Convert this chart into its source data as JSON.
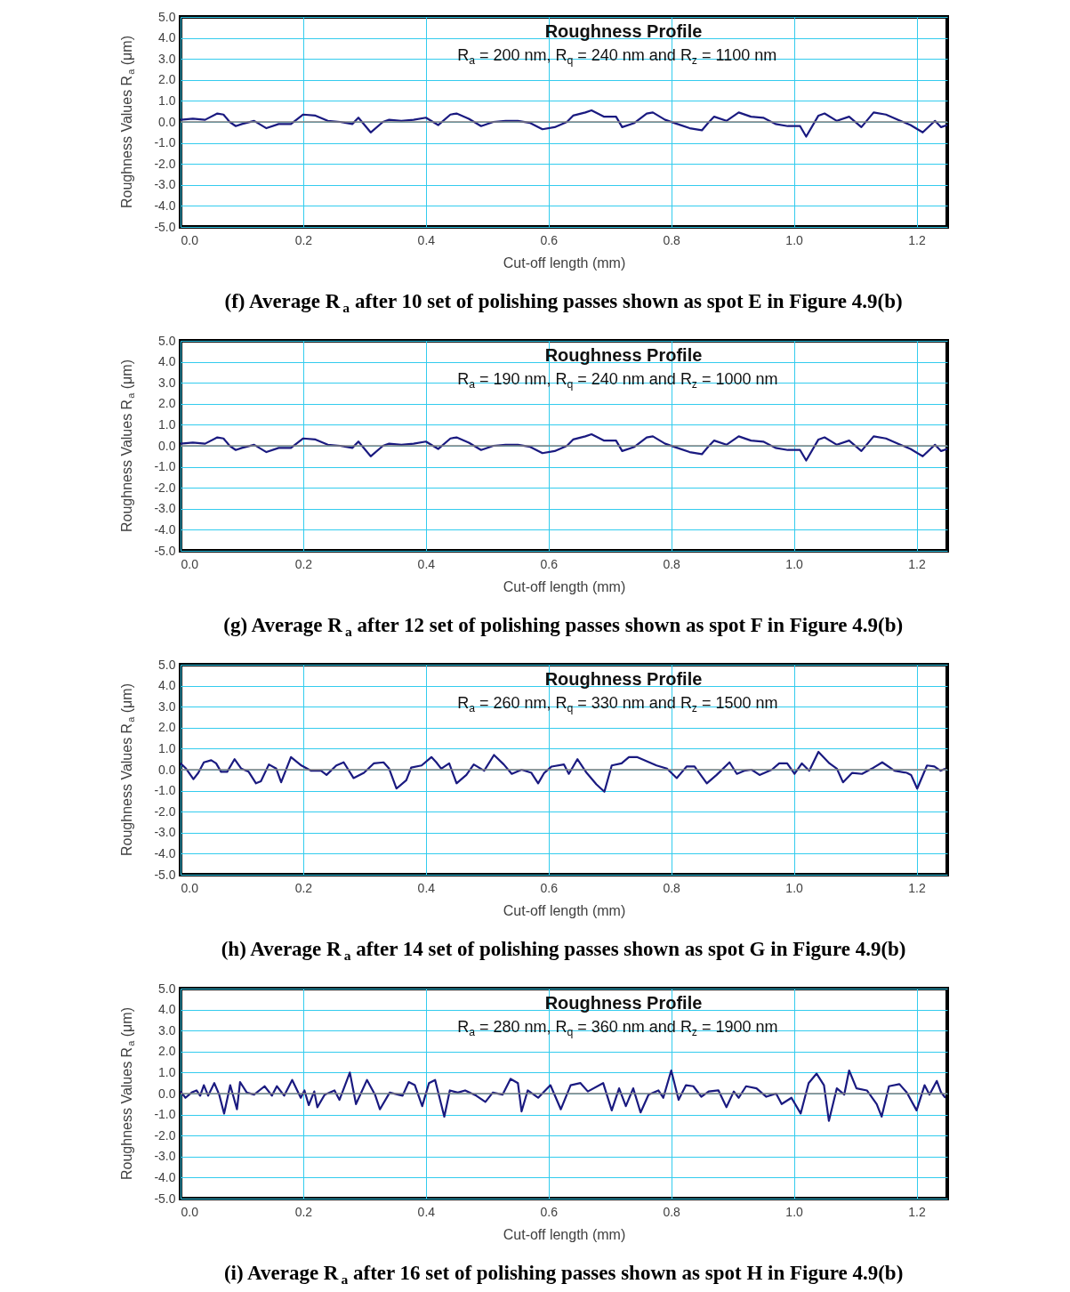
{
  "chart_data": [
    {
      "type": "line",
      "title": "Roughness Profile",
      "subtitle": "R$_{a}$ = 200 nm, R$_{q}$ = 240 nm and R$_{z}$ = 1100 nm",
      "xlabel": "Cut-off length (mm)",
      "ylabel": "Roughness Values R$_{a}$ (μm)",
      "annotations": [
        "(f) Average R$_{a}$ after 10 set of polishing passes shown as spot E in Figure 4.9(b)"
      ],
      "color": "#1a1a80",
      "grid": true,
      "legend": false,
      "marker": "none",
      "line_style": "solid",
      "xlim": [
        0,
        1.25
      ],
      "ylim": [
        -5,
        5
      ],
      "xticks": [
        {
          "value": 0,
          "label": "0.0"
        },
        {
          "value": 0.2,
          "label": "0.2"
        },
        {
          "value": 0.4,
          "label": "0.4"
        },
        {
          "value": 0.6,
          "label": "0.6"
        },
        {
          "value": 0.8,
          "label": "0.8"
        },
        {
          "value": 1,
          "label": "1.0"
        },
        {
          "value": 1.2,
          "label": "1.2"
        }
      ],
      "yticks": [
        {
          "value": -5,
          "label": "-5.0"
        },
        {
          "value": -4,
          "label": "-4.0"
        },
        {
          "value": -3,
          "label": "-3.0"
        },
        {
          "value": -2,
          "label": "-2.0"
        },
        {
          "value": -1,
          "label": "-1.0"
        },
        {
          "value": 0,
          "label": "0.0"
        },
        {
          "value": 1,
          "label": "1.0"
        },
        {
          "value": 2,
          "label": "2.0"
        },
        {
          "value": 3,
          "label": "3.0"
        },
        {
          "value": 4,
          "label": "4.0"
        },
        {
          "value": 5,
          "label": "5.0"
        }
      ],
      "ref_lines": [
        {
          "axis": "y",
          "value": 0,
          "color": "#808080"
        }
      ],
      "x": [
        0,
        0.02,
        0.04,
        0.06,
        0.07,
        0.08,
        0.09,
        0.1,
        0.12,
        0.14,
        0.16,
        0.18,
        0.2,
        0.22,
        0.24,
        0.26,
        0.28,
        0.29,
        0.31,
        0.33,
        0.34,
        0.36,
        0.38,
        0.4,
        0.42,
        0.44,
        0.45,
        0.47,
        0.49,
        0.51,
        0.53,
        0.55,
        0.57,
        0.59,
        0.61,
        0.63,
        0.64,
        0.66,
        0.67,
        0.69,
        0.71,
        0.72,
        0.74,
        0.76,
        0.77,
        0.79,
        0.81,
        0.83,
        0.85,
        0.86,
        0.87,
        0.89,
        0.91,
        0.93,
        0.95,
        0.97,
        0.99,
        1.01,
        1.02,
        1.04,
        1.05,
        1.07,
        1.09,
        1.11,
        1.13,
        1.15,
        1.17,
        1.19,
        1.21,
        1.23,
        1.24,
        1.25
      ],
      "values": [
        0.1,
        0.15,
        0.1,
        0.4,
        0.35,
        0,
        -0.2,
        -0.1,
        0.05,
        -0.3,
        -0.1,
        -0.1,
        0.35,
        0.3,
        0.05,
        0,
        -0.1,
        0.2,
        -0.5,
        0,
        0.1,
        0.05,
        0.1,
        0.2,
        -0.15,
        0.35,
        0.4,
        0.15,
        -0.2,
        0,
        0.05,
        0.05,
        -0.05,
        -0.35,
        -0.25,
        0,
        0.3,
        0.45,
        0.55,
        0.25,
        0.25,
        -0.25,
        -0.05,
        0.4,
        0.45,
        0.1,
        -0.1,
        -0.3,
        -0.4,
        -0.05,
        0.25,
        0.05,
        0.45,
        0.25,
        0.2,
        -0.1,
        -0.2,
        -0.2,
        -0.7,
        0.3,
        0.4,
        0.05,
        0.25,
        -0.25,
        0.45,
        0.35,
        0.1,
        -0.15,
        -0.5,
        0.05,
        -0.25,
        -0.15
      ]
    },
    {
      "type": "line",
      "title": "Roughness Profile",
      "subtitle": "R$_{a}$ = 190 nm, R$_{q}$ = 240 nm and R$_{z}$ = 1000 nm",
      "xlabel": "Cut-off length (mm)",
      "ylabel": "Roughness Values R$_{a}$ (μm)",
      "annotations": [
        "(g) Average R$_{a}$ after 12 set of polishing passes shown as spot F in Figure 4.9(b)"
      ],
      "color": "#1a1a80",
      "grid": true,
      "legend": false,
      "marker": "none",
      "line_style": "solid",
      "xlim": [
        0,
        1.25
      ],
      "ylim": [
        -5,
        5
      ],
      "xticks": [
        {
          "value": 0,
          "label": "0.0"
        },
        {
          "value": 0.2,
          "label": "0.2"
        },
        {
          "value": 0.4,
          "label": "0.4"
        },
        {
          "value": 0.6,
          "label": "0.6"
        },
        {
          "value": 0.8,
          "label": "0.8"
        },
        {
          "value": 1,
          "label": "1.0"
        },
        {
          "value": 1.2,
          "label": "1.2"
        }
      ],
      "yticks": [
        {
          "value": -5,
          "label": "-5.0"
        },
        {
          "value": -4,
          "label": "-4.0"
        },
        {
          "value": -3,
          "label": "-3.0"
        },
        {
          "value": -2,
          "label": "-2.0"
        },
        {
          "value": -1,
          "label": "-1.0"
        },
        {
          "value": 0,
          "label": "0.0"
        },
        {
          "value": 1,
          "label": "1.0"
        },
        {
          "value": 2,
          "label": "2.0"
        },
        {
          "value": 3,
          "label": "3.0"
        },
        {
          "value": 4,
          "label": "4.0"
        },
        {
          "value": 5,
          "label": "5.0"
        }
      ],
      "ref_lines": [
        {
          "axis": "y",
          "value": 0,
          "color": "#808080"
        }
      ],
      "x": [
        0,
        0.02,
        0.04,
        0.06,
        0.07,
        0.08,
        0.09,
        0.1,
        0.12,
        0.14,
        0.16,
        0.18,
        0.2,
        0.22,
        0.24,
        0.26,
        0.28,
        0.29,
        0.31,
        0.33,
        0.34,
        0.36,
        0.38,
        0.4,
        0.42,
        0.44,
        0.45,
        0.47,
        0.49,
        0.51,
        0.53,
        0.55,
        0.57,
        0.59,
        0.61,
        0.63,
        0.64,
        0.66,
        0.67,
        0.69,
        0.71,
        0.72,
        0.74,
        0.76,
        0.77,
        0.79,
        0.81,
        0.83,
        0.85,
        0.86,
        0.87,
        0.89,
        0.91,
        0.93,
        0.95,
        0.97,
        0.99,
        1.01,
        1.02,
        1.04,
        1.05,
        1.07,
        1.09,
        1.11,
        1.13,
        1.15,
        1.17,
        1.19,
        1.21,
        1.23,
        1.24,
        1.25
      ],
      "values": [
        0.1,
        0.15,
        0.1,
        0.4,
        0.35,
        0,
        -0.2,
        -0.1,
        0.05,
        -0.3,
        -0.1,
        -0.1,
        0.35,
        0.3,
        0.05,
        0,
        -0.1,
        0.2,
        -0.5,
        0,
        0.1,
        0.05,
        0.1,
        0.2,
        -0.15,
        0.35,
        0.4,
        0.15,
        -0.2,
        0,
        0.05,
        0.05,
        -0.05,
        -0.35,
        -0.25,
        0,
        0.3,
        0.45,
        0.55,
        0.25,
        0.25,
        -0.25,
        -0.05,
        0.4,
        0.45,
        0.1,
        -0.1,
        -0.3,
        -0.4,
        -0.05,
        0.25,
        0.05,
        0.45,
        0.25,
        0.2,
        -0.1,
        -0.2,
        -0.2,
        -0.7,
        0.3,
        0.4,
        0.05,
        0.25,
        -0.25,
        0.45,
        0.35,
        0.1,
        -0.15,
        -0.5,
        0.05,
        -0.25,
        -0.15
      ]
    },
    {
      "type": "line",
      "title": "Roughness Profile",
      "subtitle": "R$_{a}$ = 260 nm, R$_{q}$ = 330 nm and R$_{z}$ = 1500 nm",
      "xlabel": "Cut-off length (mm)",
      "ylabel": "Roughness Values R$_{a}$ (μm)",
      "annotations": [
        "(h) Average R$_{a}$ after 14 set of polishing passes shown as spot G in Figure 4.9(b)"
      ],
      "color": "#1a1a80",
      "grid": true,
      "legend": false,
      "marker": "none",
      "line_style": "solid",
      "xlim": [
        0,
        1.25
      ],
      "ylim": [
        -5,
        5
      ],
      "xticks": [
        {
          "value": 0,
          "label": "0.0"
        },
        {
          "value": 0.2,
          "label": "0.2"
        },
        {
          "value": 0.4,
          "label": "0.4"
        },
        {
          "value": 0.6,
          "label": "0.6"
        },
        {
          "value": 0.8,
          "label": "0.8"
        },
        {
          "value": 1,
          "label": "1.0"
        },
        {
          "value": 1.2,
          "label": "1.2"
        }
      ],
      "yticks": [
        {
          "value": -5,
          "label": "-5.0"
        },
        {
          "value": -4,
          "label": "-4.0"
        },
        {
          "value": -3,
          "label": "-3.0"
        },
        {
          "value": -2,
          "label": "-2.0"
        },
        {
          "value": -1,
          "label": "-1.0"
        },
        {
          "value": 0,
          "label": "0.0"
        },
        {
          "value": 1,
          "label": "1.0"
        },
        {
          "value": 2,
          "label": "2.0"
        },
        {
          "value": 3,
          "label": "3.0"
        },
        {
          "value": 4,
          "label": "4.0"
        },
        {
          "value": 5,
          "label": "5.0"
        }
      ],
      "ref_lines": [
        {
          "axis": "y",
          "value": 0,
          "color": "#808080"
        }
      ],
      "x": [
        0,
        0.009,
        0.021,
        0.029,
        0.038,
        0.05,
        0.058,
        0.066,
        0.076,
        0.088,
        0.099,
        0.111,
        0.123,
        0.131,
        0.144,
        0.156,
        0.164,
        0.18,
        0.197,
        0.213,
        0.229,
        0.238,
        0.254,
        0.266,
        0.282,
        0.299,
        0.315,
        0.331,
        0.34,
        0.352,
        0.368,
        0.376,
        0.393,
        0.409,
        0.417,
        0.425,
        0.438,
        0.45,
        0.466,
        0.478,
        0.495,
        0.511,
        0.527,
        0.54,
        0.556,
        0.572,
        0.583,
        0.593,
        0.605,
        0.625,
        0.633,
        0.647,
        0.662,
        0.678,
        0.691,
        0.703,
        0.719,
        0.731,
        0.744,
        0.76,
        0.776,
        0.793,
        0.809,
        0.825,
        0.838,
        0.858,
        0.874,
        0.895,
        0.907,
        0.919,
        0.931,
        0.944,
        0.964,
        0.976,
        0.989,
        1.001,
        1.013,
        1.025,
        1.04,
        1.058,
        1.07,
        1.08,
        1.095,
        1.111,
        1.127,
        1.144,
        1.164,
        1.184,
        1.191,
        1.201,
        1.217,
        1.229,
        1.239,
        1.247
      ],
      "values": [
        0.3,
        0.05,
        -0.45,
        -0.15,
        0.35,
        0.45,
        0.3,
        -0.1,
        -0.1,
        0.5,
        0.05,
        -0.1,
        -0.65,
        -0.55,
        0.25,
        0.05,
        -0.6,
        0.6,
        0.2,
        -0.05,
        -0.05,
        -0.25,
        0.2,
        0.35,
        -0.4,
        -0.15,
        0.3,
        0.35,
        0.05,
        -0.9,
        -0.5,
        0.1,
        0.2,
        0.6,
        0.35,
        0.05,
        0.3,
        -0.65,
        -0.25,
        0.25,
        -0.05,
        0.7,
        0.25,
        -0.2,
        0,
        -0.15,
        -0.65,
        -0.15,
        0.15,
        0.25,
        -0.2,
        0.5,
        -0.15,
        -0.7,
        -1.05,
        0.2,
        0.3,
        0.6,
        0.6,
        0.4,
        0.2,
        0.05,
        -0.4,
        0.15,
        0.15,
        -0.65,
        -0.25,
        0.35,
        -0.2,
        -0.05,
        0,
        -0.25,
        0,
        0.3,
        0.3,
        -0.2,
        0.3,
        -0.05,
        0.85,
        0.3,
        0.05,
        -0.6,
        -0.15,
        -0.2,
        0.05,
        0.35,
        -0.05,
        -0.15,
        -0.25,
        -0.9,
        0.2,
        0.15,
        -0.05,
        0.05
      ]
    },
    {
      "type": "line",
      "title": "Roughness Profile",
      "subtitle": "R$_{a}$ = 280 nm, R$_{q}$ = 360 nm and R$_{z}$ = 1900 nm",
      "xlabel": "Cut-off length (mm)",
      "ylabel": "Roughness Values R$_{a}$ (μm)",
      "annotations": [
        "(i) Average R$_{a}$ after 16 set of polishing passes shown as spot H in Figure 4.9(b)"
      ],
      "color": "#1a1a80",
      "grid": true,
      "legend": false,
      "marker": "none",
      "line_style": "solid",
      "xlim": [
        0,
        1.25
      ],
      "ylim": [
        -5,
        5
      ],
      "xticks": [
        {
          "value": 0,
          "label": "0.0"
        },
        {
          "value": 0.2,
          "label": "0.2"
        },
        {
          "value": 0.4,
          "label": "0.4"
        },
        {
          "value": 0.6,
          "label": "0.6"
        },
        {
          "value": 0.8,
          "label": "0.8"
        },
        {
          "value": 1,
          "label": "1.0"
        },
        {
          "value": 1.2,
          "label": "1.2"
        }
      ],
      "yticks": [
        {
          "value": -5,
          "label": "-5.0"
        },
        {
          "value": -4,
          "label": "-4.0"
        },
        {
          "value": -3,
          "label": "-3.0"
        },
        {
          "value": -2,
          "label": "-2.0"
        },
        {
          "value": -1,
          "label": "-1.0"
        },
        {
          "value": 0,
          "label": "0.0"
        },
        {
          "value": 1,
          "label": "1.0"
        },
        {
          "value": 2,
          "label": "2.0"
        },
        {
          "value": 3,
          "label": "3.0"
        },
        {
          "value": 4,
          "label": "4.0"
        },
        {
          "value": 5,
          "label": "5.0"
        }
      ],
      "ref_lines": [
        {
          "axis": "y",
          "value": 0,
          "color": "#808080"
        }
      ],
      "x": [
        0,
        0.008,
        0.018,
        0.026,
        0.032,
        0.038,
        0.045,
        0.055,
        0.063,
        0.071,
        0.081,
        0.092,
        0.097,
        0.108,
        0.12,
        0.137,
        0.149,
        0.157,
        0.169,
        0.182,
        0.196,
        0.202,
        0.209,
        0.218,
        0.223,
        0.235,
        0.251,
        0.259,
        0.265,
        0.276,
        0.286,
        0.304,
        0.317,
        0.325,
        0.341,
        0.362,
        0.372,
        0.382,
        0.394,
        0.405,
        0.415,
        0.43,
        0.439,
        0.452,
        0.464,
        0.482,
        0.497,
        0.509,
        0.525,
        0.538,
        0.55,
        0.556,
        0.566,
        0.583,
        0.603,
        0.62,
        0.636,
        0.652,
        0.664,
        0.689,
        0.703,
        0.715,
        0.726,
        0.738,
        0.75,
        0.763,
        0.779,
        0.787,
        0.8,
        0.812,
        0.824,
        0.836,
        0.849,
        0.861,
        0.877,
        0.89,
        0.902,
        0.91,
        0.922,
        0.939,
        0.955,
        0.971,
        0.98,
        0.996,
        1.011,
        1.024,
        1.037,
        1.049,
        1.057,
        1.07,
        1.082,
        1.09,
        1.102,
        1.119,
        1.135,
        1.143,
        1.155,
        1.172,
        1.184,
        1.2,
        1.213,
        1.221,
        1.233,
        1.24,
        1.247
      ],
      "values": [
        0.1,
        -0.2,
        0.05,
        0.15,
        -0.1,
        0.4,
        -0.1,
        0.5,
        -0.05,
        -0.95,
        0.4,
        -0.75,
        0.55,
        0.05,
        -0.05,
        0.35,
        -0.1,
        0.35,
        -0.1,
        0.65,
        -0.2,
        0.15,
        -0.55,
        0.1,
        -0.65,
        -0.05,
        0.15,
        -0.3,
        0.15,
        1.0,
        -0.5,
        0.65,
        -0.05,
        -0.75,
        0.05,
        -0.1,
        0.55,
        0.4,
        -0.6,
        0.5,
        0.65,
        -1.1,
        0.15,
        0.05,
        0.15,
        -0.1,
        -0.4,
        0.05,
        -0.05,
        0.7,
        0.5,
        -0.85,
        0.15,
        -0.2,
        0.4,
        -0.75,
        0.4,
        0.5,
        0.1,
        0.5,
        -0.8,
        0.25,
        -0.6,
        0.25,
        -0.9,
        -0.05,
        0.15,
        -0.2,
        1.1,
        -0.3,
        0.4,
        0.35,
        -0.15,
        0.1,
        0.15,
        -0.65,
        0.1,
        -0.2,
        0.35,
        0.25,
        -0.15,
        0,
        -0.5,
        -0.2,
        -0.95,
        0.5,
        0.95,
        0.4,
        -1.3,
        0.25,
        -0.05,
        1.1,
        0.25,
        0.15,
        -0.5,
        -1.1,
        0.35,
        0.45,
        0.05,
        -0.8,
        0.4,
        -0.05,
        0.6,
        0.05,
        -0.2
      ]
    }
  ]
}
